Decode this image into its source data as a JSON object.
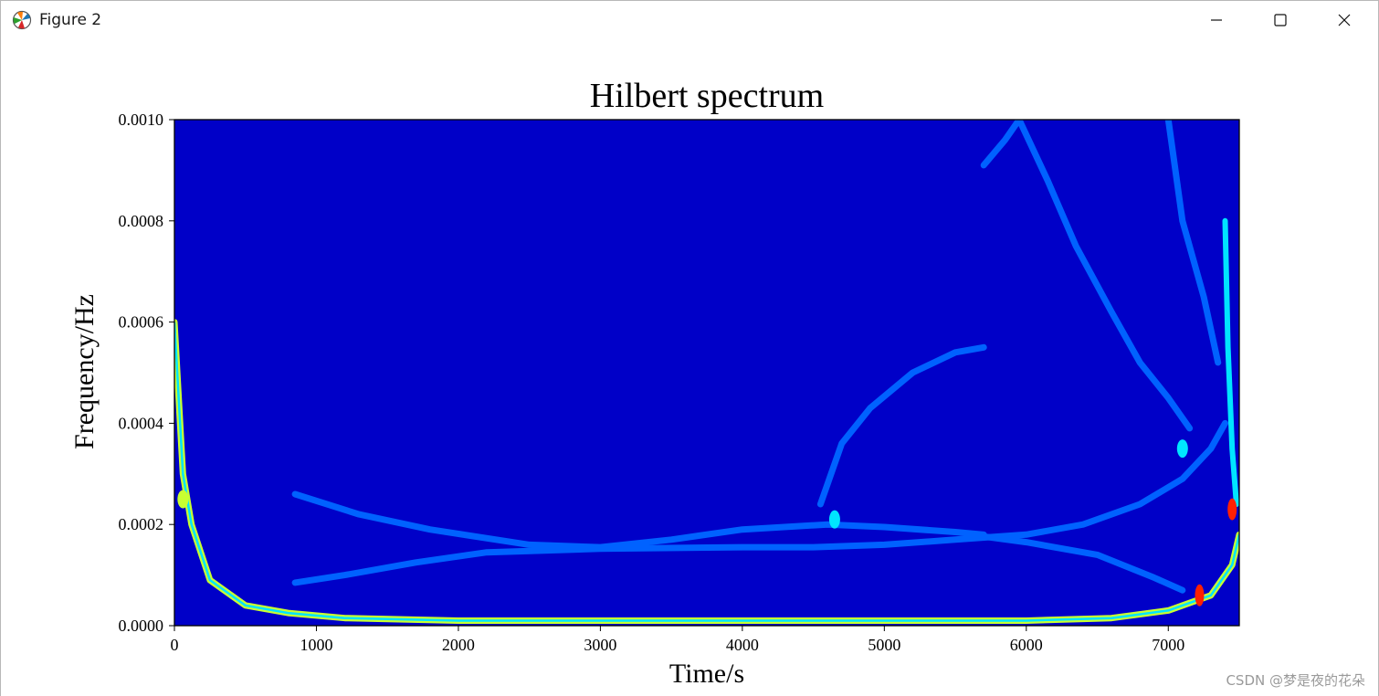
{
  "window": {
    "title": "Figure 2",
    "icons": {
      "app": "matplotlib-icon",
      "minimize": "minimize-icon",
      "maximize": "maximize-icon",
      "close": "close-icon"
    }
  },
  "watermark": "CSDN @梦是夜的花朵",
  "chart_data": {
    "type": "heatmap",
    "title": "Hilbert spectrum",
    "xlabel": "Time/s",
    "ylabel": "Frequency/Hz",
    "xlim": [
      0,
      7500
    ],
    "ylim": [
      0,
      0.001
    ],
    "xticks": [
      "0",
      "1000",
      "2000",
      "3000",
      "4000",
      "5000",
      "6000",
      "7000"
    ],
    "yticks": [
      "0.0000",
      "0.0002",
      "0.0004",
      "0.0006",
      "0.0008",
      "0.0010"
    ],
    "xtick_values": [
      0,
      1000,
      2000,
      3000,
      4000,
      5000,
      6000,
      7000
    ],
    "ytick_values": [
      0,
      0.0002,
      0.0004,
      0.0006,
      0.0008,
      0.001
    ],
    "colormap": "jet",
    "background_color": "#0000c8",
    "colors": {
      "low": "#0062ff",
      "mid": "#00e5ff",
      "high": "#c8ff32",
      "peak": "#ff2000"
    },
    "ridges": [
      {
        "x": [
          0,
          60,
          120,
          250,
          500,
          800,
          1200,
          2000,
          3000,
          4000,
          5000,
          6000,
          6600,
          7000,
          7300,
          7450,
          7500
        ],
        "y": [
          0.0006,
          0.0003,
          0.0002,
          9e-05,
          4e-05,
          2.5e-05,
          1.5e-05,
          1e-05,
          1e-05,
          1e-05,
          1e-05,
          1e-05,
          1.5e-05,
          3e-05,
          6e-05,
          0.00012,
          0.00018
        ],
        "level": "high"
      },
      {
        "x": [
          850,
          1300,
          1800,
          2500,
          3000,
          3500,
          4000,
          4600,
          5000,
          5500,
          5700
        ],
        "y": [
          0.00026,
          0.00022,
          0.00019,
          0.00016,
          0.000155,
          0.00017,
          0.00019,
          0.0002,
          0.000195,
          0.000185,
          0.00018
        ],
        "level": "low"
      },
      {
        "x": [
          850,
          1200,
          1700,
          2200,
          3000,
          4000,
          4500,
          5000,
          5500,
          6000,
          6400,
          6800,
          7100,
          7300,
          7400
        ],
        "y": [
          8.5e-05,
          0.0001,
          0.000125,
          0.000145,
          0.000152,
          0.000155,
          0.000155,
          0.00016,
          0.00017,
          0.00018,
          0.0002,
          0.00024,
          0.00029,
          0.00035,
          0.0004
        ],
        "level": "low"
      },
      {
        "x": [
          5600,
          6000,
          6500,
          6900,
          7100
        ],
        "y": [
          0.00018,
          0.000165,
          0.00014,
          9.5e-05,
          7e-05
        ],
        "level": "low"
      },
      {
        "x": [
          4550,
          4700,
          4900,
          5200,
          5500,
          5700
        ],
        "y": [
          0.00024,
          0.00036,
          0.00043,
          0.0005,
          0.00054,
          0.00055
        ],
        "level": "low"
      },
      {
        "x": [
          5950,
          6150,
          6350,
          6600,
          6800,
          7000,
          7150
        ],
        "y": [
          0.001,
          0.00088,
          0.00075,
          0.00062,
          0.00052,
          0.00045,
          0.00039
        ],
        "level": "low"
      },
      {
        "x": [
          5700,
          5850,
          5950
        ],
        "y": [
          0.00091,
          0.00096,
          0.001
        ],
        "level": "low"
      },
      {
        "x": [
          7000,
          7100,
          7250,
          7350
        ],
        "y": [
          0.001,
          0.0008,
          0.00065,
          0.00052
        ],
        "level": "low"
      },
      {
        "x": [
          7400,
          7420,
          7450,
          7480
        ],
        "y": [
          0.0008,
          0.00055,
          0.00035,
          0.00024
        ],
        "level": "mid"
      }
    ],
    "hotspots": [
      {
        "x": 7450,
        "y": 0.00023,
        "level": "peak"
      },
      {
        "x": 7220,
        "y": 6e-05,
        "level": "peak"
      },
      {
        "x": 60,
        "y": 0.00025,
        "level": "high"
      },
      {
        "x": 4650,
        "y": 0.00021,
        "level": "mid"
      },
      {
        "x": 7100,
        "y": 0.00035,
        "level": "mid"
      }
    ]
  }
}
